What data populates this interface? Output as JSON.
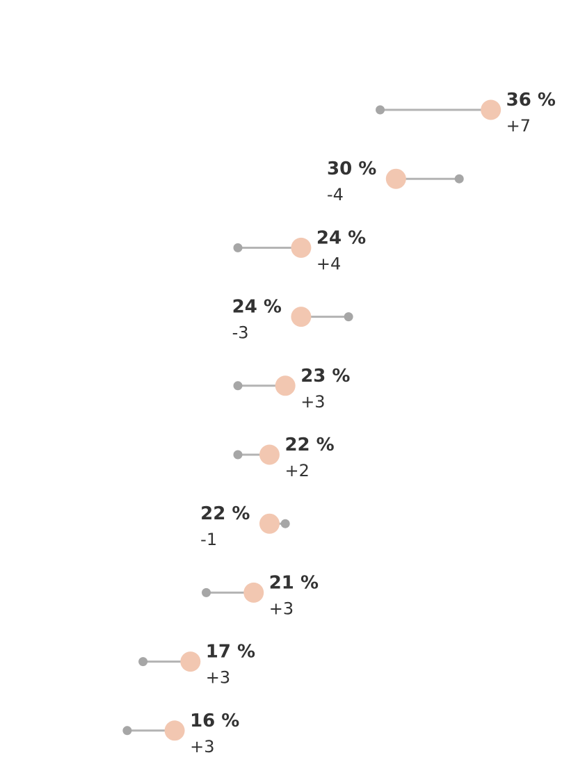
{
  "chart_data": {
    "type": "dumbbell",
    "unit": "%",
    "colors": {
      "current_point": "#f2c7b1",
      "previous_point": "#a6a6a6",
      "connector": "#b3b3b3",
      "text": "#333333"
    },
    "rows": [
      {
        "value": 36,
        "value_label": "36 %",
        "previous": 29,
        "change_label": "+7"
      },
      {
        "value": 30,
        "value_label": "30 %",
        "previous": 34,
        "change_label": "-4"
      },
      {
        "value": 24,
        "value_label": "24 %",
        "previous": 20,
        "change_label": "+4"
      },
      {
        "value": 24,
        "value_label": "24 %",
        "previous": 27,
        "change_label": "-3"
      },
      {
        "value": 23,
        "value_label": "23 %",
        "previous": 20,
        "change_label": "+3"
      },
      {
        "value": 22,
        "value_label": "22 %",
        "previous": 20,
        "change_label": "+2"
      },
      {
        "value": 22,
        "value_label": "22 %",
        "previous": 23,
        "change_label": "-1"
      },
      {
        "value": 21,
        "value_label": "21 %",
        "previous": 18,
        "change_label": "+3"
      },
      {
        "value": 17,
        "value_label": "17 %",
        "previous": 14,
        "change_label": "+3"
      },
      {
        "value": 16,
        "value_label": "16 %",
        "previous": 13,
        "change_label": "+3"
      }
    ]
  }
}
